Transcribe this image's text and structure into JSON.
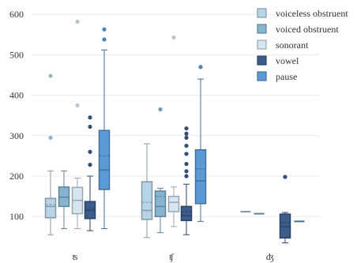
{
  "chart_data": {
    "type": "box",
    "title": "",
    "xlabel": "",
    "ylabel": "",
    "ylim": [
      30,
      620
    ],
    "y_ticks": [
      100,
      200,
      300,
      400,
      500,
      600
    ],
    "grid": "horizontal",
    "legend_position": "top-right",
    "categories": [
      "ʦ",
      "ʧ",
      "ʤ"
    ],
    "series": [
      {
        "name": "voiceless obstruent",
        "color": "#b7d3e6",
        "boxes": [
          {
            "category": "ʦ",
            "whisker_low": 55,
            "q1": 97,
            "median": 125,
            "mean": 130,
            "q3": 145,
            "whisker_high": 213,
            "outliers": [
              295,
              448
            ]
          },
          {
            "category": "ʧ",
            "whisker_low": 48,
            "q1": 93,
            "median": 115,
            "mean": 135,
            "q3": 186,
            "whisker_high": 280,
            "outliers": []
          },
          {
            "category": "ʤ",
            "whisker_low": 112,
            "q1": 112,
            "median": 112,
            "mean": 112,
            "q3": 112,
            "whisker_high": 112,
            "outliers": []
          }
        ]
      },
      {
        "name": "voiced obstruent",
        "color": "#87b5d1",
        "boxes": [
          {
            "category": "ʦ",
            "whisker_low": 70,
            "q1": 125,
            "median": 148,
            "mean": 148,
            "q3": 173,
            "whisker_high": 213,
            "outliers": []
          },
          {
            "category": "ʧ",
            "whisker_low": 60,
            "q1": 100,
            "median": 125,
            "mean": 150,
            "q3": 163,
            "whisker_high": 170,
            "outliers": [
              365
            ]
          },
          {
            "category": "ʤ",
            "whisker_low": 107,
            "q1": 107,
            "median": 107,
            "mean": 107,
            "q3": 107,
            "whisker_high": 107,
            "outliers": []
          }
        ]
      },
      {
        "name": "sonorant",
        "color": "#d5e6f1",
        "boxes": [
          {
            "category": "ʦ",
            "whisker_low": 70,
            "q1": 107,
            "median": 140,
            "mean": 140,
            "q3": 172,
            "whisker_high": 195,
            "outliers": [
              375,
              582
            ]
          },
          {
            "category": "ʧ",
            "whisker_low": 75,
            "q1": 112,
            "median": 135,
            "mean": 135,
            "q3": 150,
            "whisker_high": 173,
            "outliers": [
              543
            ]
          },
          {
            "category": "ʤ",
            "whisker_low": null,
            "q1": null,
            "median": null,
            "mean": null,
            "q3": null,
            "whisker_high": null,
            "outliers": []
          }
        ]
      },
      {
        "name": "vowel",
        "color": "#3c5d8c",
        "boxes": [
          {
            "category": "ʦ",
            "whisker_low": 65,
            "q1": 95,
            "median": 115,
            "mean": 120,
            "q3": 137,
            "whisker_high": 200,
            "outliers": [
              228,
              260,
              322,
              345
            ]
          },
          {
            "category": "ʧ",
            "whisker_low": 55,
            "q1": 90,
            "median": 102,
            "mean": 112,
            "q3": 125,
            "whisker_high": 180,
            "outliers": [
              200,
              212,
              230,
              255,
              275,
              295,
              305,
              318
            ]
          },
          {
            "category": "ʤ",
            "whisker_low": 35,
            "q1": 47,
            "median": 75,
            "mean": 85,
            "q3": 106,
            "whisker_high": 110,
            "outliers": [
              198
            ]
          }
        ]
      },
      {
        "name": "pause",
        "color": "#5b9ad5",
        "boxes": [
          {
            "category": "ʦ",
            "whisker_low": 70,
            "q1": 167,
            "median": 215,
            "mean": 250,
            "q3": 313,
            "whisker_high": 512,
            "outliers": [
              538,
              563
            ]
          },
          {
            "category": "ʧ",
            "whisker_low": 88,
            "q1": 132,
            "median": 188,
            "mean": 218,
            "q3": 265,
            "whisker_high": 440,
            "outliers": [
              470
            ]
          },
          {
            "category": "ʤ",
            "whisker_low": 88,
            "q1": 88,
            "median": 88,
            "mean": 88,
            "q3": 88,
            "whisker_high": 88,
            "outliers": []
          }
        ]
      }
    ]
  }
}
